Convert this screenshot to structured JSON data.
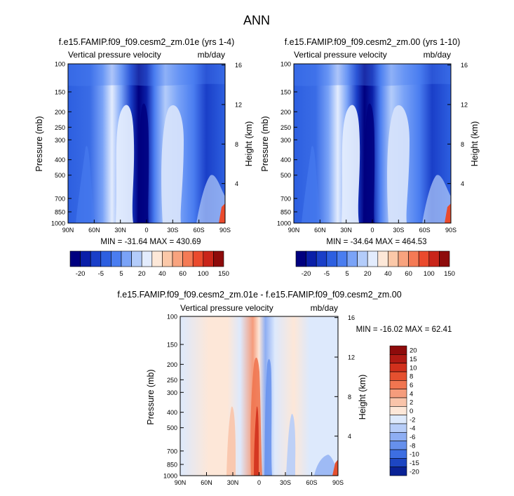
{
  "page_title": "ANN",
  "chart_data": [
    {
      "type": "heatmap",
      "title": "f.e15.FAMIP.f09_f09.cesm2_zm.01e (yrs 1-4)",
      "subtitle_left": "Vertical pressure velocity",
      "subtitle_right": "mb/day",
      "xlabel": "",
      "ylabel": "Pressure (mb)",
      "ylabel_right": "Height (km)",
      "x_ticks": [
        "90N",
        "60N",
        "30N",
        "0",
        "30S",
        "60S",
        "90S"
      ],
      "y_ticks": [
        "100",
        "150",
        "200",
        "250",
        "300",
        "400",
        "500",
        "700",
        "850",
        "1000"
      ],
      "y_ticks_right": [
        "16",
        "12",
        "8",
        "4"
      ],
      "stats": "MIN = -31.64  MAX = 430.69",
      "colorbar_levels": [
        "-20",
        "-5",
        "5",
        "20",
        "40",
        "60",
        "100",
        "150"
      ]
    },
    {
      "type": "heatmap",
      "title": "f.e15.FAMIP.f09_f09.cesm2_zm.00 (yrs 1-10)",
      "subtitle_left": "Vertical pressure velocity",
      "subtitle_right": "mb/day",
      "xlabel": "",
      "ylabel": "Pressure (mb)",
      "ylabel_right": "Height (km)",
      "x_ticks": [
        "90N",
        "60N",
        "30N",
        "0",
        "30S",
        "60S",
        "90S"
      ],
      "y_ticks": [
        "100",
        "150",
        "200",
        "250",
        "300",
        "400",
        "500",
        "700",
        "850",
        "1000"
      ],
      "y_ticks_right": [
        "16",
        "12",
        "8",
        "4"
      ],
      "stats": "MIN = -34.64  MAX = 464.53",
      "colorbar_levels": [
        "-20",
        "-5",
        "5",
        "20",
        "40",
        "60",
        "100",
        "150"
      ]
    },
    {
      "type": "heatmap",
      "title": "f.e15.FAMIP.f09_f09.cesm2_zm.01e - f.e15.FAMIP.f09_f09.cesm2_zm.00",
      "subtitle_left": "Vertical pressure velocity",
      "subtitle_right": "mb/day",
      "xlabel": "",
      "ylabel": "Pressure (mb)",
      "ylabel_right": "Height (km)",
      "x_ticks": [
        "90N",
        "60N",
        "30N",
        "0",
        "30S",
        "60S",
        "90S"
      ],
      "y_ticks": [
        "100",
        "150",
        "200",
        "250",
        "300",
        "400",
        "500",
        "700",
        "850",
        "1000"
      ],
      "y_ticks_right": [
        "16",
        "12",
        "8",
        "4"
      ],
      "stats": "MIN = -16.02  MAX = 62.41",
      "colorbar_levels": [
        "20",
        "15",
        "10",
        "8",
        "6",
        "4",
        "2",
        "0",
        "-2",
        "-4",
        "-6",
        "-8",
        "-10",
        "-15",
        "-20"
      ]
    }
  ],
  "colors": {
    "abs_scale": [
      "#00007f",
      "#0a1fa8",
      "#1a3fc8",
      "#2d5fe0",
      "#4a7df0",
      "#7aa3f7",
      "#b3ccfa",
      "#e3ecfd",
      "#fde8d8",
      "#fbc8a8",
      "#f8a37e",
      "#f47a55",
      "#ea4a2d",
      "#c9251a",
      "#8e0b0b"
    ],
    "diff_scale": [
      "#8e0b0b",
      "#b01a13",
      "#d1301c",
      "#e5502f",
      "#f07550",
      "#f59c7c",
      "#f9c4aa",
      "#fde7d8",
      "#dde9fc",
      "#b7cdf8",
      "#8eaef3",
      "#6690ec",
      "#3d6ee2",
      "#1d46c2",
      "#0a2296"
    ]
  }
}
